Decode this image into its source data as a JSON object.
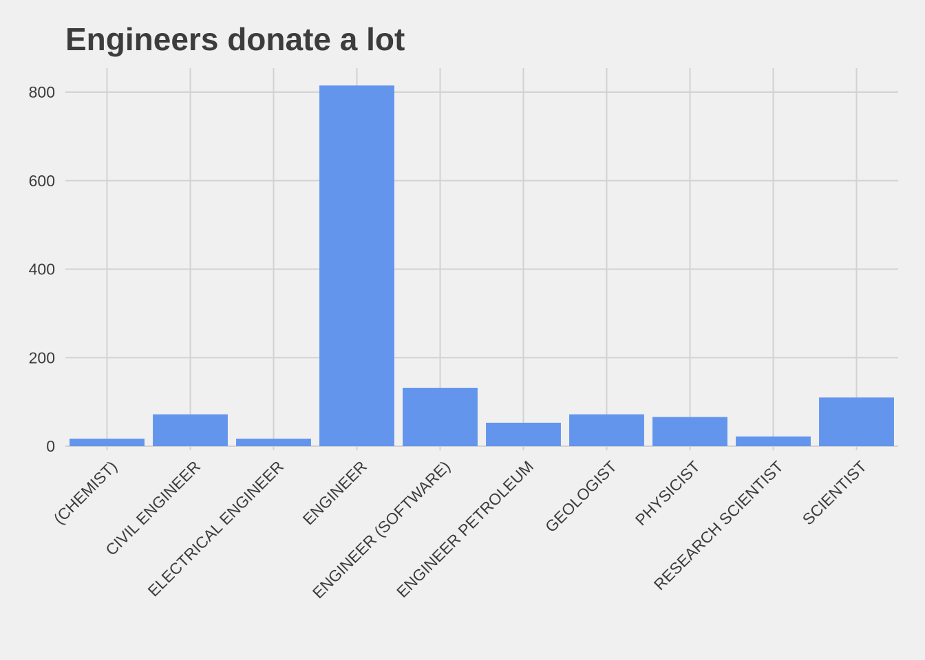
{
  "chart_data": {
    "type": "bar",
    "title": "Engineers donate a lot",
    "xlabel": "",
    "ylabel": "",
    "categories": [
      "(CHEMIST)",
      "CIVIL ENGINEER",
      "ELECTRICAL ENGINEER",
      "ENGINEER",
      "ENGINEER (SOFTWARE)",
      "ENGINEER PETROLEUM",
      "GEOLOGIST",
      "PHYSICIST",
      "RESEARCH SCIENTIST",
      "SCIENTIST"
    ],
    "values": [
      17,
      72,
      17,
      815,
      132,
      53,
      72,
      66,
      22,
      110
    ],
    "ylim": [
      -25,
      855
    ],
    "yticks": [
      0,
      200,
      400,
      600,
      800
    ],
    "grid": true,
    "legend": "none",
    "bar_color": "#6495ed",
    "grid_color": "#d2d2d2",
    "background": "#f0f0f0",
    "text_color": "#3c3c3c"
  }
}
